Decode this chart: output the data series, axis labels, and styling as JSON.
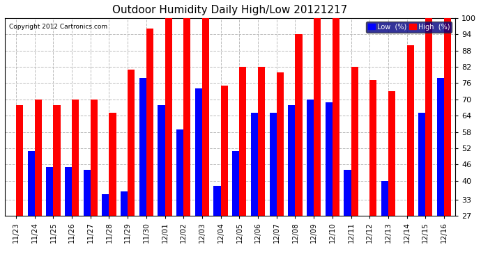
{
  "title": "Outdoor Humidity Daily High/Low 20121217",
  "copyright": "Copyright 2012 Cartronics.com",
  "dates": [
    "11/23",
    "11/24",
    "11/25",
    "11/26",
    "11/27",
    "11/28",
    "11/29",
    "11/30",
    "12/01",
    "12/02",
    "12/03",
    "12/04",
    "12/05",
    "12/06",
    "12/07",
    "12/08",
    "12/09",
    "12/10",
    "12/11",
    "12/12",
    "12/13",
    "12/14",
    "12/15",
    "12/16"
  ],
  "high": [
    68,
    70,
    68,
    70,
    70,
    65,
    81,
    96,
    100,
    100,
    100,
    75,
    82,
    82,
    80,
    94,
    100,
    100,
    82,
    77,
    73,
    90,
    100,
    100
  ],
  "low": [
    27,
    51,
    45,
    45,
    44,
    35,
    36,
    78,
    68,
    59,
    74,
    38,
    51,
    65,
    65,
    68,
    70,
    69,
    44,
    27,
    40,
    27,
    65,
    78
  ],
  "high_color": "#ff0000",
  "low_color": "#0000ff",
  "bg_color": "#ffffff",
  "plot_bg": "#ffffff",
  "grid_color": "#bbbbbb",
  "ylim": [
    27,
    100
  ],
  "yticks": [
    27,
    33,
    40,
    46,
    52,
    58,
    64,
    70,
    76,
    82,
    88,
    94,
    100
  ],
  "bar_width": 0.38,
  "legend_low_label": "Low  (%)",
  "legend_high_label": "High  (%)"
}
